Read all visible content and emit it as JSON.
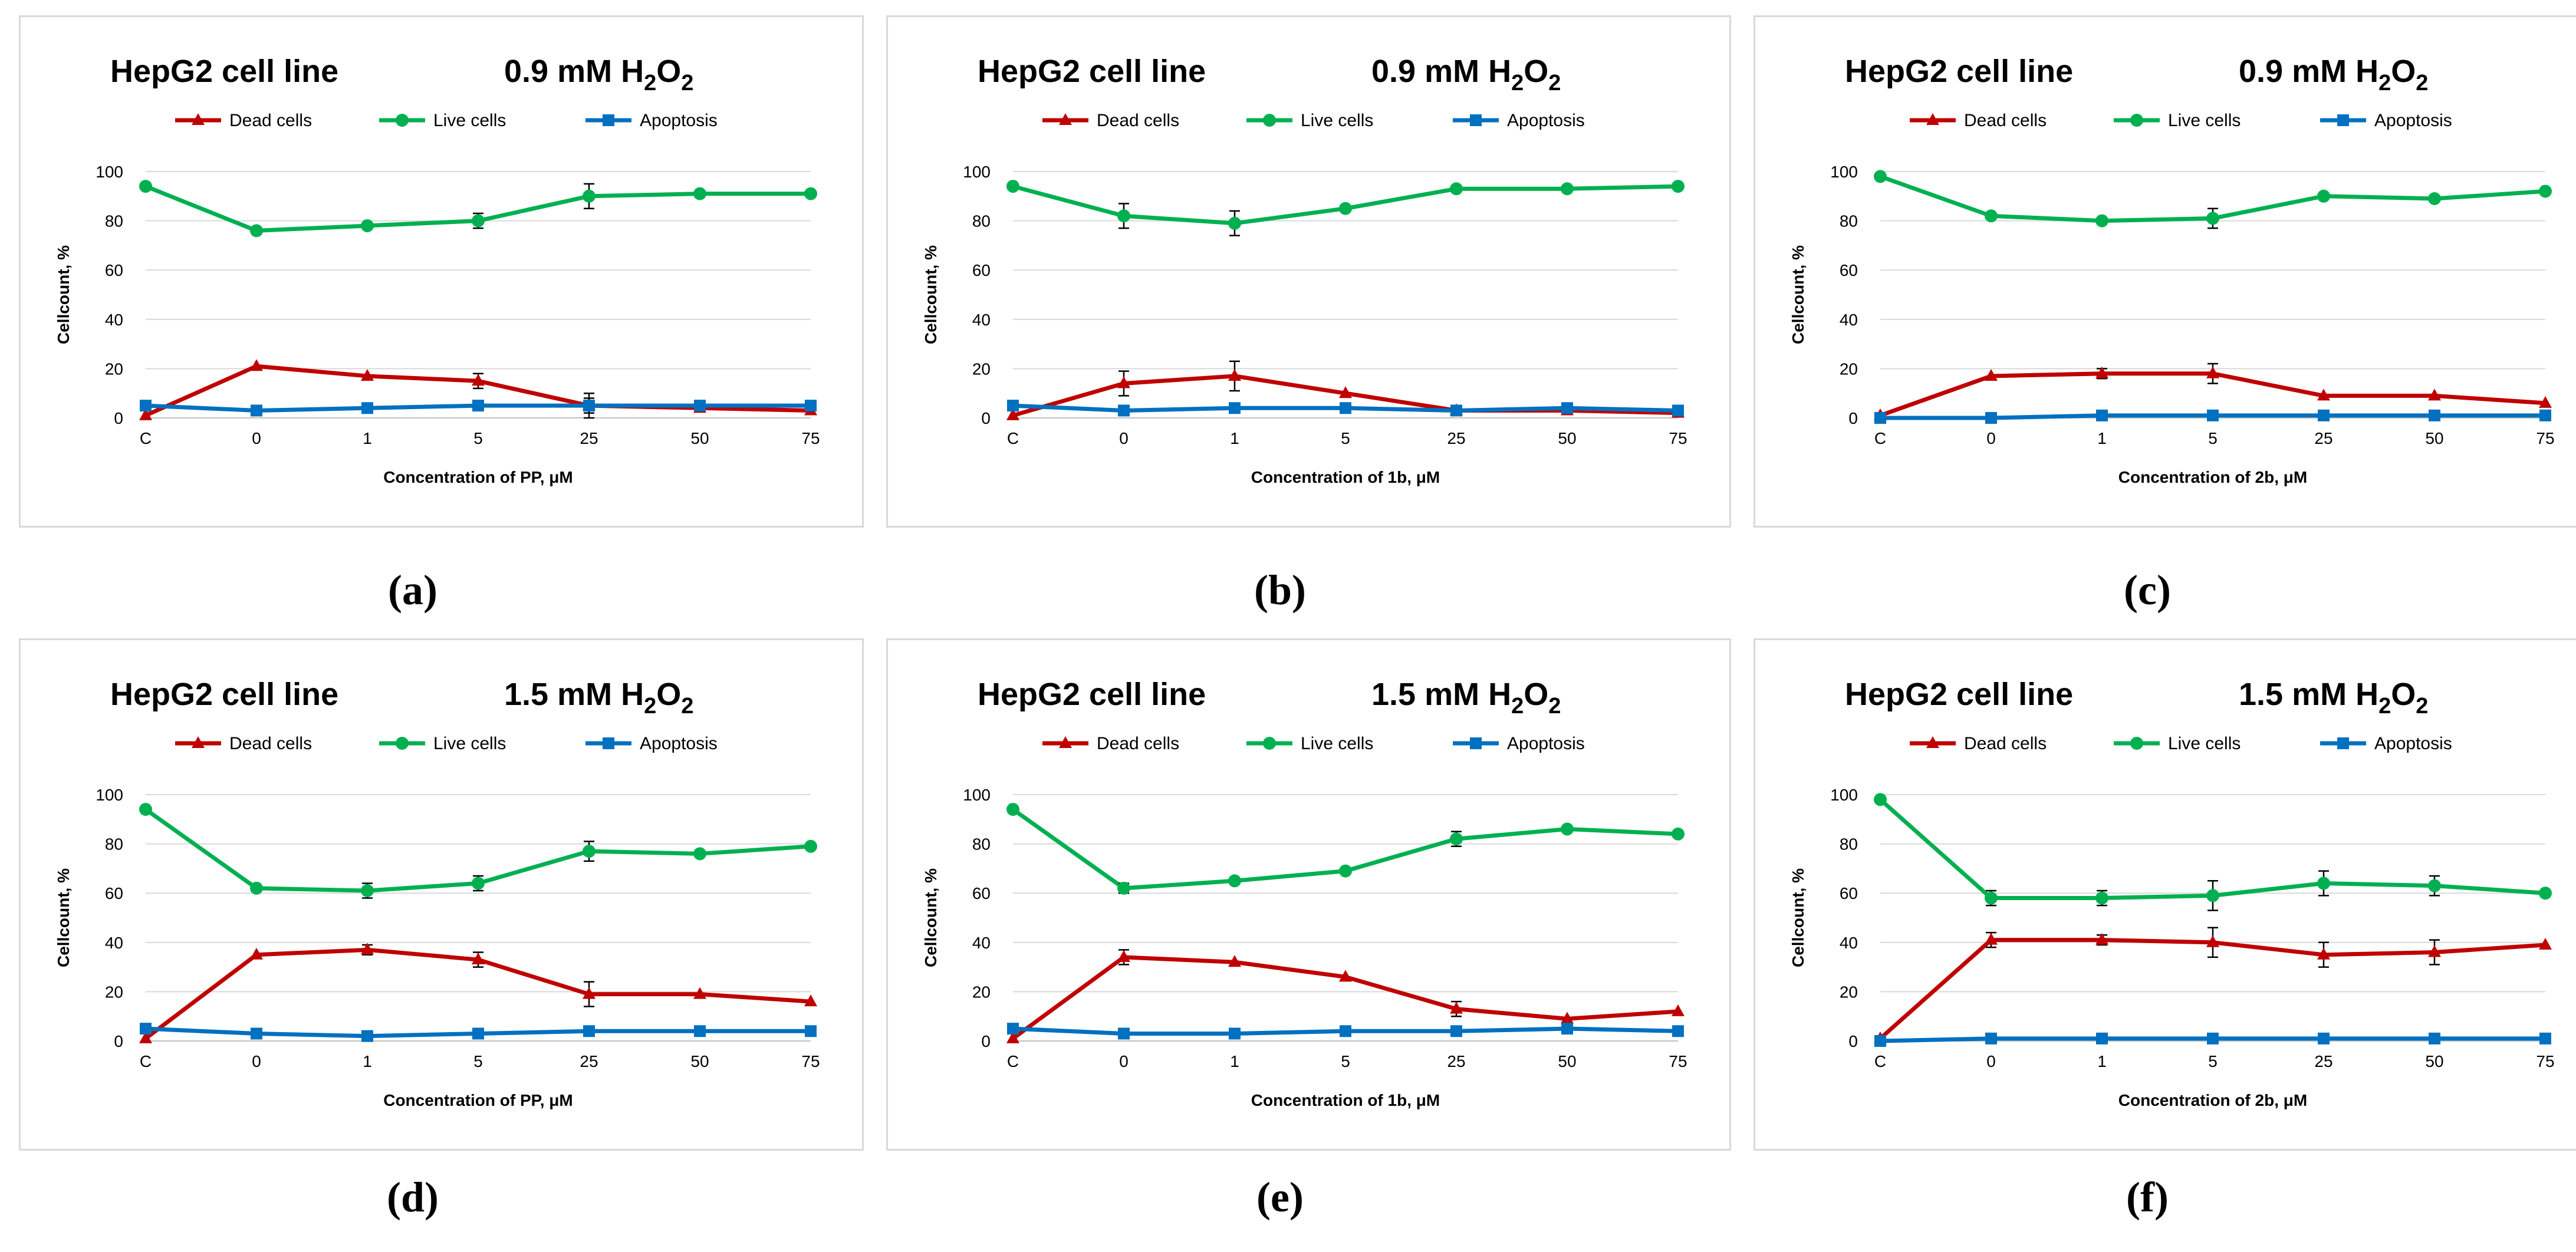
{
  "chart_data": [
    {
      "type": "line",
      "panel_label": "(a)",
      "title": "HepG2 cell line",
      "treatment": {
        "prefix": "0.9 mM H",
        "sub1": "2",
        "mid": "O",
        "sub2": "2"
      },
      "xlabel": "Concentration of PP, μM",
      "ylabel": "Cellcount, %",
      "ylim": [
        0,
        100
      ],
      "yticks": [
        "0",
        "20",
        "40",
        "60",
        "80",
        "100"
      ],
      "categories": [
        "C",
        "0",
        "1",
        "5",
        "25",
        "50",
        "75"
      ],
      "series": [
        {
          "name": "Dead cells",
          "color": "#c00000",
          "marker": "triangle",
          "values": [
            1,
            21,
            17,
            15,
            5,
            4,
            3
          ],
          "errors": [
            0,
            0,
            0,
            3,
            5,
            0,
            0
          ]
        },
        {
          "name": "Live cells",
          "color": "#00b050",
          "marker": "circle",
          "values": [
            94,
            76,
            78,
            80,
            90,
            91,
            91
          ],
          "errors": [
            0,
            0,
            0,
            3,
            5,
            0,
            0
          ]
        },
        {
          "name": "Apoptosis",
          "color": "#0070c0",
          "marker": "square",
          "values": [
            5,
            3,
            4,
            5,
            5,
            5,
            5
          ],
          "errors": [
            0,
            0,
            0,
            0,
            3,
            0,
            0
          ]
        }
      ]
    },
    {
      "type": "line",
      "panel_label": "(b)",
      "title": "HepG2 cell line",
      "treatment": {
        "prefix": "0.9 mM H",
        "sub1": "2",
        "mid": "O",
        "sub2": "2"
      },
      "xlabel": "Concentration of 1b, μM",
      "ylabel": "Cellcount, %",
      "ylim": [
        0,
        100
      ],
      "yticks": [
        "0",
        "20",
        "40",
        "60",
        "80",
        "100"
      ],
      "categories": [
        "C",
        "0",
        "1",
        "5",
        "25",
        "50",
        "75"
      ],
      "series": [
        {
          "name": "Dead cells",
          "color": "#c00000",
          "marker": "triangle",
          "values": [
            1,
            14,
            17,
            10,
            3,
            3,
            2
          ],
          "errors": [
            0,
            5,
            6,
            0,
            0,
            0,
            0
          ]
        },
        {
          "name": "Live cells",
          "color": "#00b050",
          "marker": "circle",
          "values": [
            94,
            82,
            79,
            85,
            93,
            93,
            94
          ],
          "errors": [
            0,
            5,
            5,
            0,
            0,
            0,
            0
          ]
        },
        {
          "name": "Apoptosis",
          "color": "#0070c0",
          "marker": "square",
          "values": [
            5,
            3,
            4,
            4,
            3,
            4,
            3
          ],
          "errors": [
            0,
            0,
            0,
            0,
            0,
            0,
            0
          ]
        }
      ]
    },
    {
      "type": "line",
      "panel_label": "(c)",
      "title": "HepG2 cell line",
      "treatment": {
        "prefix": "0.9 mM H",
        "sub1": "2",
        "mid": "O",
        "sub2": "2"
      },
      "xlabel": "Concentration of 2b, μM",
      "ylabel": "Cellcount, %",
      "ylim": [
        0,
        100
      ],
      "yticks": [
        "0",
        "20",
        "40",
        "60",
        "80",
        "100"
      ],
      "categories": [
        "C",
        "0",
        "1",
        "5",
        "25",
        "50",
        "75"
      ],
      "series": [
        {
          "name": "Dead cells",
          "color": "#c00000",
          "marker": "triangle",
          "values": [
            1,
            17,
            18,
            18,
            9,
            9,
            6
          ],
          "errors": [
            0,
            0,
            2,
            4,
            0,
            0,
            0
          ]
        },
        {
          "name": "Live cells",
          "color": "#00b050",
          "marker": "circle",
          "values": [
            98,
            82,
            80,
            81,
            90,
            89,
            92
          ],
          "errors": [
            0,
            0,
            0,
            4,
            0,
            0,
            0
          ]
        },
        {
          "name": "Apoptosis",
          "color": "#0070c0",
          "marker": "square",
          "values": [
            0,
            0,
            1,
            1,
            1,
            1,
            1
          ],
          "errors": [
            0,
            0,
            0,
            0,
            0,
            0,
            0
          ]
        }
      ]
    },
    {
      "type": "line",
      "panel_label": "(d)",
      "title": "HepG2 cell line",
      "treatment": {
        "prefix": "1.5 mM H",
        "sub1": "2",
        "mid": "O",
        "sub2": "2"
      },
      "xlabel": "Concentration of PP, μM",
      "ylabel": "Cellcount, %",
      "ylim": [
        0,
        100
      ],
      "yticks": [
        "0",
        "20",
        "40",
        "60",
        "80",
        "100"
      ],
      "categories": [
        "C",
        "0",
        "1",
        "5",
        "25",
        "50",
        "75"
      ],
      "series": [
        {
          "name": "Dead cells",
          "color": "#c00000",
          "marker": "triangle",
          "values": [
            1,
            35,
            37,
            33,
            19,
            19,
            16
          ],
          "errors": [
            0,
            0,
            2,
            3,
            5,
            0,
            0
          ]
        },
        {
          "name": "Live cells",
          "color": "#00b050",
          "marker": "circle",
          "values": [
            94,
            62,
            61,
            64,
            77,
            76,
            79
          ],
          "errors": [
            0,
            0,
            3,
            3,
            4,
            0,
            0
          ]
        },
        {
          "name": "Apoptosis",
          "color": "#0070c0",
          "marker": "square",
          "values": [
            5,
            3,
            2,
            3,
            4,
            4,
            4
          ],
          "errors": [
            0,
            0,
            0,
            0,
            0,
            0,
            0
          ]
        }
      ]
    },
    {
      "type": "line",
      "panel_label": "(e)",
      "title": "HepG2 cell line",
      "treatment": {
        "prefix": "1.5 mM H",
        "sub1": "2",
        "mid": "O",
        "sub2": "2"
      },
      "xlabel": "Concentration of 1b, μM",
      "ylabel": "Cellcount, %",
      "ylim": [
        0,
        100
      ],
      "yticks": [
        "0",
        "20",
        "40",
        "60",
        "80",
        "100"
      ],
      "categories": [
        "C",
        "0",
        "1",
        "5",
        "25",
        "50",
        "75"
      ],
      "series": [
        {
          "name": "Dead cells",
          "color": "#c00000",
          "marker": "triangle",
          "values": [
            1,
            34,
            32,
            26,
            13,
            9,
            12
          ],
          "errors": [
            0,
            3,
            0,
            0,
            3,
            0,
            0
          ]
        },
        {
          "name": "Live cells",
          "color": "#00b050",
          "marker": "circle",
          "values": [
            94,
            62,
            65,
            69,
            82,
            86,
            84
          ],
          "errors": [
            0,
            2,
            0,
            0,
            3,
            0,
            0
          ]
        },
        {
          "name": "Apoptosis",
          "color": "#0070c0",
          "marker": "square",
          "values": [
            5,
            3,
            3,
            4,
            4,
            5,
            4
          ],
          "errors": [
            0,
            0,
            0,
            0,
            0,
            0,
            0
          ]
        }
      ]
    },
    {
      "type": "line",
      "panel_label": "(f)",
      "title": "HepG2 cell line",
      "treatment": {
        "prefix": "1.5 mM H",
        "sub1": "2",
        "mid": "O",
        "sub2": "2"
      },
      "xlabel": "Concentration of 2b, μM",
      "ylabel": "Cellcount, %",
      "ylim": [
        0,
        100
      ],
      "yticks": [
        "0",
        "20",
        "40",
        "60",
        "80",
        "100"
      ],
      "categories": [
        "C",
        "0",
        "1",
        "5",
        "25",
        "50",
        "75"
      ],
      "series": [
        {
          "name": "Dead cells",
          "color": "#c00000",
          "marker": "triangle",
          "values": [
            1,
            41,
            41,
            40,
            35,
            36,
            39
          ],
          "errors": [
            0,
            3,
            2,
            6,
            5,
            5,
            0
          ]
        },
        {
          "name": "Live cells",
          "color": "#00b050",
          "marker": "circle",
          "values": [
            98,
            58,
            58,
            59,
            64,
            63,
            60
          ],
          "errors": [
            0,
            3,
            3,
            6,
            5,
            4,
            0
          ]
        },
        {
          "name": "Apoptosis",
          "color": "#0070c0",
          "marker": "square",
          "values": [
            0,
            1,
            1,
            1,
            1,
            1,
            1
          ],
          "errors": [
            0,
            0,
            0,
            0,
            0,
            0,
            0
          ]
        }
      ]
    }
  ]
}
